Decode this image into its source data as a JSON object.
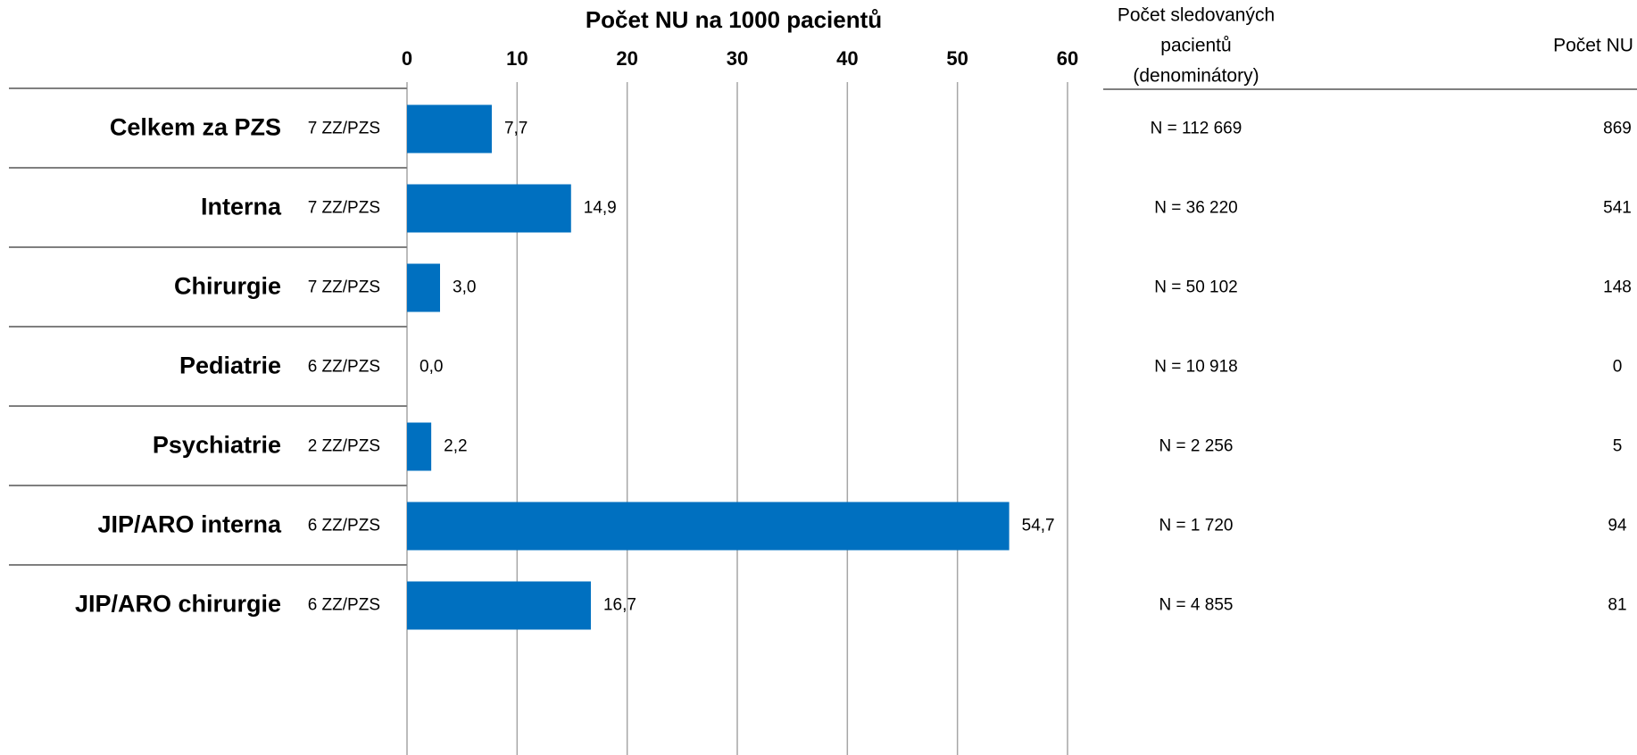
{
  "chart_data": {
    "type": "bar",
    "orientation": "horizontal",
    "title": "Počet NU na 1000 pacientů",
    "categories": [
      "Celkem za PZS",
      "Interna",
      "Chirurgie",
      "Pediatrie",
      "Psychiatrie",
      "JIP/ARO interna",
      "JIP/ARO chirurgie"
    ],
    "sublabels": [
      "7 ZZ/PZS",
      "7 ZZ/PZS",
      "7 ZZ/PZS",
      "6 ZZ/PZS",
      "2 ZZ/PZS",
      "6 ZZ/PZS",
      "6 ZZ/PZS"
    ],
    "values": [
      7.7,
      14.9,
      3.0,
      0.0,
      2.2,
      54.7,
      16.7
    ],
    "value_labels": [
      "7,7",
      "14,9",
      "3,0",
      "0,0",
      "2,2",
      "54,7",
      "16,7"
    ],
    "color": "#0070c0",
    "xlim": [
      0,
      60
    ],
    "xticks": [
      0,
      10,
      20,
      30,
      40,
      50,
      60
    ],
    "grid": true,
    "table": {
      "denominator_header": [
        "Počet sledovaných",
        "pacientů",
        "(denominátory)"
      ],
      "count_header": "Počet NU",
      "denominators": [
        "N = 112 669",
        "N = 36 220",
        "N = 50 102",
        "N = 10 918",
        "N = 2 256",
        "N = 1 720",
        "N = 4 855"
      ],
      "counts": [
        869,
        541,
        148,
        0,
        5,
        94,
        81
      ]
    }
  }
}
